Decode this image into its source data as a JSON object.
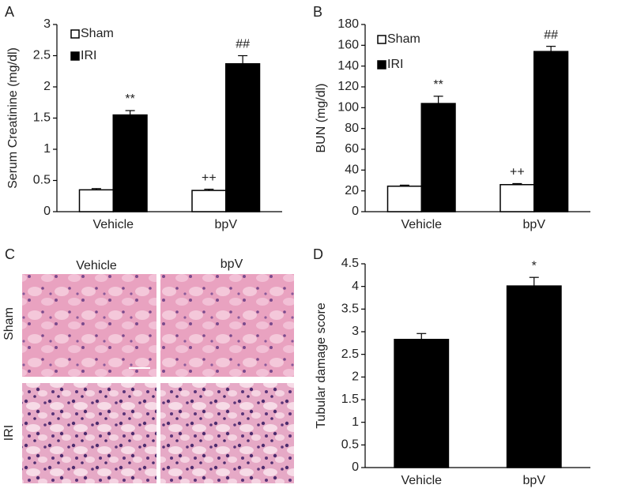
{
  "chart_data": [
    {
      "type": "bar",
      "label": "A",
      "ylabel": "Serum Creatinine (mg/dl)",
      "categories": [
        "Vehicle",
        "bpV"
      ],
      "series": [
        {
          "name": "Sham",
          "color": "#ffffff",
          "values": [
            0.35,
            0.34
          ],
          "errors": [
            0.02,
            0.02
          ],
          "annotations": [
            null,
            "++"
          ]
        },
        {
          "name": "IRI",
          "color": "#000000",
          "values": [
            1.55,
            2.37
          ],
          "errors": [
            0.07,
            0.13
          ],
          "annotations": [
            "**",
            "##"
          ]
        }
      ],
      "ylim": [
        0,
        3
      ],
      "yticks": [
        0,
        0.5,
        1,
        1.5,
        2,
        2.5,
        3
      ],
      "legend": "upper left"
    },
    {
      "type": "bar",
      "label": "B",
      "ylabel": "BUN (mg/dl)",
      "categories": [
        "Vehicle",
        "bpV"
      ],
      "series": [
        {
          "name": "Sham",
          "color": "#ffffff",
          "values": [
            24.5,
            26
          ],
          "errors": [
            1,
            1
          ],
          "annotations": [
            null,
            "++"
          ]
        },
        {
          "name": "IRI",
          "color": "#000000",
          "values": [
            104,
            154
          ],
          "errors": [
            7,
            5
          ],
          "annotations": [
            "**",
            "##"
          ]
        }
      ],
      "ylim": [
        0,
        180
      ],
      "yticks": [
        0,
        20,
        40,
        60,
        80,
        100,
        120,
        140,
        160,
        180
      ],
      "legend": "upper left"
    },
    {
      "type": "image-grid",
      "label": "C",
      "columns": [
        "Vehicle",
        "bpV"
      ],
      "rows": [
        "Sham",
        "IRI"
      ]
    },
    {
      "type": "bar",
      "label": "D",
      "ylabel": "Tubular damage score",
      "categories": [
        "Vehicle",
        "bpV"
      ],
      "color": "#000000",
      "values": [
        2.83,
        4.01
      ],
      "errors": [
        0.13,
        0.19
      ],
      "annotations": [
        null,
        "*"
      ],
      "ylim": [
        0,
        4.5
      ],
      "yticks": [
        0,
        0.5,
        1,
        1.5,
        2,
        2.5,
        3,
        3.5,
        4,
        4.5
      ]
    }
  ]
}
